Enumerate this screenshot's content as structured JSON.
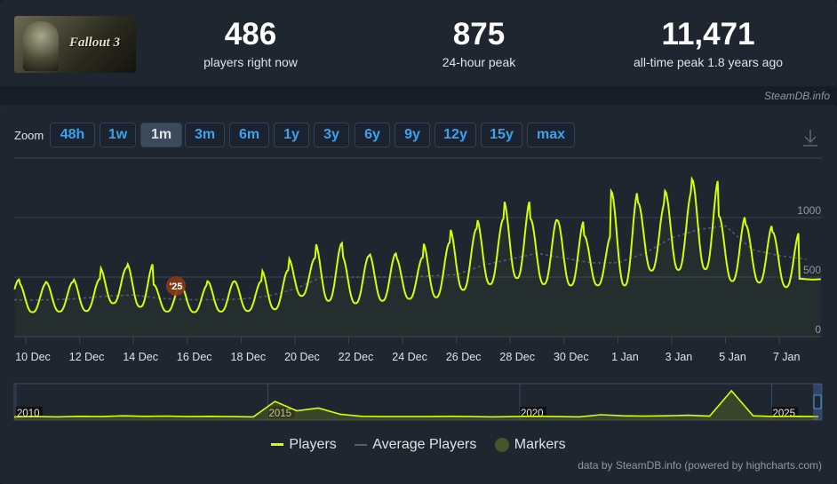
{
  "header": {
    "game_logo_text": "Fallout 3",
    "stats": [
      {
        "value": "486",
        "label": "players right now"
      },
      {
        "value": "875",
        "label": "24-hour peak"
      },
      {
        "value": "11,471",
        "label": "all-time peak 1.8 years ago"
      }
    ],
    "credit": "SteamDB.info"
  },
  "zoom": {
    "label": "Zoom",
    "options": [
      "48h",
      "1w",
      "1m",
      "3m",
      "6m",
      "1y",
      "3y",
      "6y",
      "9y",
      "12y",
      "15y",
      "max"
    ],
    "selected": "1m"
  },
  "colors": {
    "players": "#d7ff00",
    "average": "#555f6b",
    "marker": "#8b3a17",
    "background": "#1f2630",
    "button_text": "#3aa3ec"
  },
  "chart_data": {
    "type": "line",
    "ylim": [
      0,
      1500
    ],
    "y_ticks": [
      "0",
      "500",
      "1000"
    ],
    "x_ticks": [
      "10 Dec",
      "12 Dec",
      "14 Dec",
      "16 Dec",
      "18 Dec",
      "20 Dec",
      "22 Dec",
      "24 Dec",
      "26 Dec",
      "28 Dec",
      "30 Dec",
      "1 Jan",
      "3 Jan",
      "5 Jan",
      "7 Jan"
    ],
    "grid": true,
    "series": [
      {
        "name": "Players",
        "daily": {
          "dates": [
            "9 Dec",
            "10 Dec",
            "11 Dec",
            "12 Dec",
            "13 Dec",
            "14 Dec",
            "15 Dec",
            "16 Dec",
            "17 Dec",
            "18 Dec",
            "19 Dec",
            "20 Dec",
            "21 Dec",
            "22 Dec",
            "23 Dec",
            "24 Dec",
            "25 Dec",
            "26 Dec",
            "27 Dec",
            "28 Dec",
            "29 Dec",
            "30 Dec",
            "31 Dec",
            "1 Jan",
            "2 Jan",
            "3 Jan",
            "4 Jan",
            "5 Jan",
            "6 Jan",
            "7 Jan",
            "8 Jan"
          ],
          "peak": [
            479,
            446,
            459,
            484,
            581,
            616,
            436,
            434,
            466,
            466,
            559,
            661,
            786,
            678,
            698,
            666,
            790,
            908,
            990,
            1147,
            990,
            978,
            848,
            1222,
            1125,
            1224,
            1324,
            1015,
            940,
            878,
            486
          ],
          "low": [
            217,
            205,
            210,
            215,
            280,
            250,
            210,
            205,
            210,
            215,
            230,
            342,
            300,
            280,
            300,
            317,
            330,
            392,
            440,
            491,
            440,
            429,
            430,
            429,
            554,
            560,
            566,
            466,
            454,
            416,
            480
          ]
        }
      },
      {
        "name": "Average Players",
        "daily_values": [
          310,
          305,
          310,
          320,
          340,
          350,
          320,
          310,
          310,
          315,
          340,
          400,
          500,
          500,
          500,
          500,
          510,
          520,
          600,
          650,
          700,
          660,
          620,
          620,
          700,
          830,
          900,
          930,
          730,
          680,
          650
        ]
      },
      {
        "name": "Markers",
        "markers": [
          {
            "date": "15 Dec",
            "label": "'25"
          }
        ]
      }
    ],
    "navigator": {
      "x_ticks": [
        "2010",
        "2015",
        "2020",
        "2025"
      ],
      "yearly_shape": [
        2,
        3,
        2,
        4,
        3,
        6,
        4,
        5,
        3,
        4,
        3,
        2,
        60,
        25,
        35,
        12,
        4,
        3,
        3,
        3,
        4,
        3,
        2,
        3,
        4,
        3,
        2,
        10,
        6,
        5,
        6,
        8,
        5,
        100,
        6,
        3,
        4,
        3
      ]
    }
  },
  "legend": [
    "Players",
    "Average Players",
    "Markers"
  ],
  "footer": "data by SteamDB.info (powered by highcharts.com)"
}
